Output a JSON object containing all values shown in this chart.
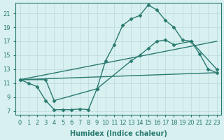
{
  "line1_x": [
    0,
    1,
    2,
    3,
    4,
    5,
    6,
    7,
    8,
    9,
    10,
    11,
    12,
    13,
    14,
    15,
    16,
    17,
    18,
    19,
    20,
    21,
    22,
    23
  ],
  "line1_y": [
    11.5,
    11.0,
    10.5,
    8.5,
    7.2,
    7.2,
    7.2,
    7.3,
    7.2,
    10.2,
    14.2,
    16.5,
    19.3,
    20.2,
    20.7,
    22.2,
    21.5,
    20.0,
    19.0,
    17.2,
    17.0,
    15.2,
    13.0,
    12.5
  ],
  "line2_x": [
    0,
    23
  ],
  "line2_y": [
    11.5,
    17.0
  ],
  "line3_x": [
    0,
    23
  ],
  "line3_y": [
    11.5,
    12.5
  ],
  "line4_x": [
    0,
    3,
    4,
    9,
    13,
    14,
    15,
    16,
    17,
    18,
    20,
    23
  ],
  "line4_y": [
    11.5,
    11.5,
    8.5,
    10.2,
    14.2,
    15.0,
    16.0,
    17.0,
    17.2,
    16.5,
    17.0,
    13.0
  ],
  "line_color": "#2a7a6f",
  "bg_color": "#d8f0f0",
  "grid_color": "#c0dede",
  "xlabel": "Humidex (Indice chaleur)",
  "xticks": [
    0,
    1,
    2,
    3,
    4,
    5,
    6,
    7,
    8,
    9,
    10,
    11,
    12,
    13,
    14,
    15,
    16,
    17,
    18,
    19,
    20,
    21,
    22,
    23
  ],
  "xtick_labels": [
    "0",
    "1",
    "2",
    "3",
    "4",
    "5",
    "6",
    "7",
    "8",
    "9",
    "10",
    "11",
    "12",
    "13",
    "14",
    "15",
    "16",
    "17",
    "18",
    "19",
    "20",
    "21",
    "22",
    "23"
  ],
  "yticks": [
    7,
    9,
    11,
    13,
    15,
    17,
    19,
    21
  ],
  "ylim": [
    6.5,
    22.5
  ],
  "xlim": [
    -0.5,
    23.5
  ],
  "marker": "D",
  "markersize": 2.5,
  "linewidth": 1.0,
  "fontsize_label": 7,
  "fontsize_tick": 6.0
}
